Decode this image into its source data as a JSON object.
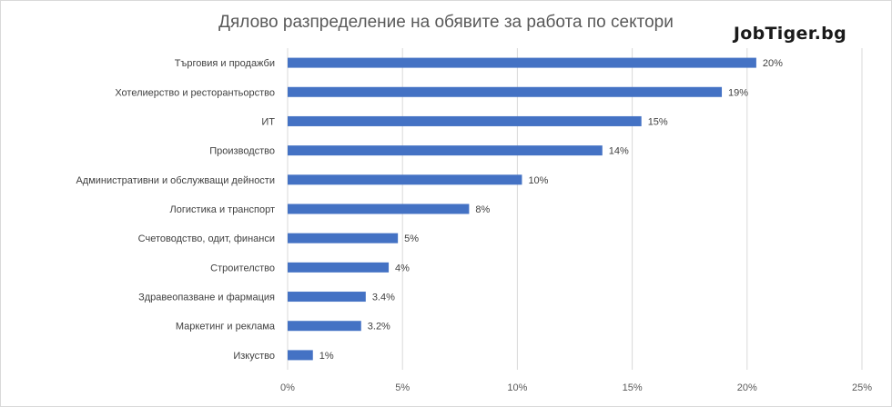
{
  "brand": "JobTiger.bg",
  "colors": {
    "bar": "#4472C4",
    "grid": "#d9d9d9"
  },
  "chart_data": {
    "type": "bar",
    "orientation": "horizontal",
    "title": "Дялово разпределение на обявите за работа по сектори",
    "categories": [
      "Търговия и продажби",
      "Хотелиерство и ресторантьорство",
      "ИТ",
      "Производство",
      "Административни и обслужващи дейности",
      "Логистика и транспорт",
      "Счетоводство, одит, финанси",
      "Строителство",
      "Здравеопазване и фармация",
      "Маркетинг и реклама",
      "Изкуство"
    ],
    "values": [
      20.4,
      18.9,
      15.4,
      13.7,
      10.2,
      7.9,
      4.8,
      4.4,
      3.4,
      3.2,
      1.1
    ],
    "data_labels": [
      "20%",
      "19%",
      "15%",
      "14%",
      "10%",
      "8%",
      "5%",
      "4%",
      "3.4%",
      "3.2%",
      "1%"
    ],
    "x_ticks": [
      "0%",
      "5%",
      "10%",
      "15%",
      "20%",
      "25%"
    ],
    "xlim": [
      0,
      25
    ],
    "grid": true
  }
}
